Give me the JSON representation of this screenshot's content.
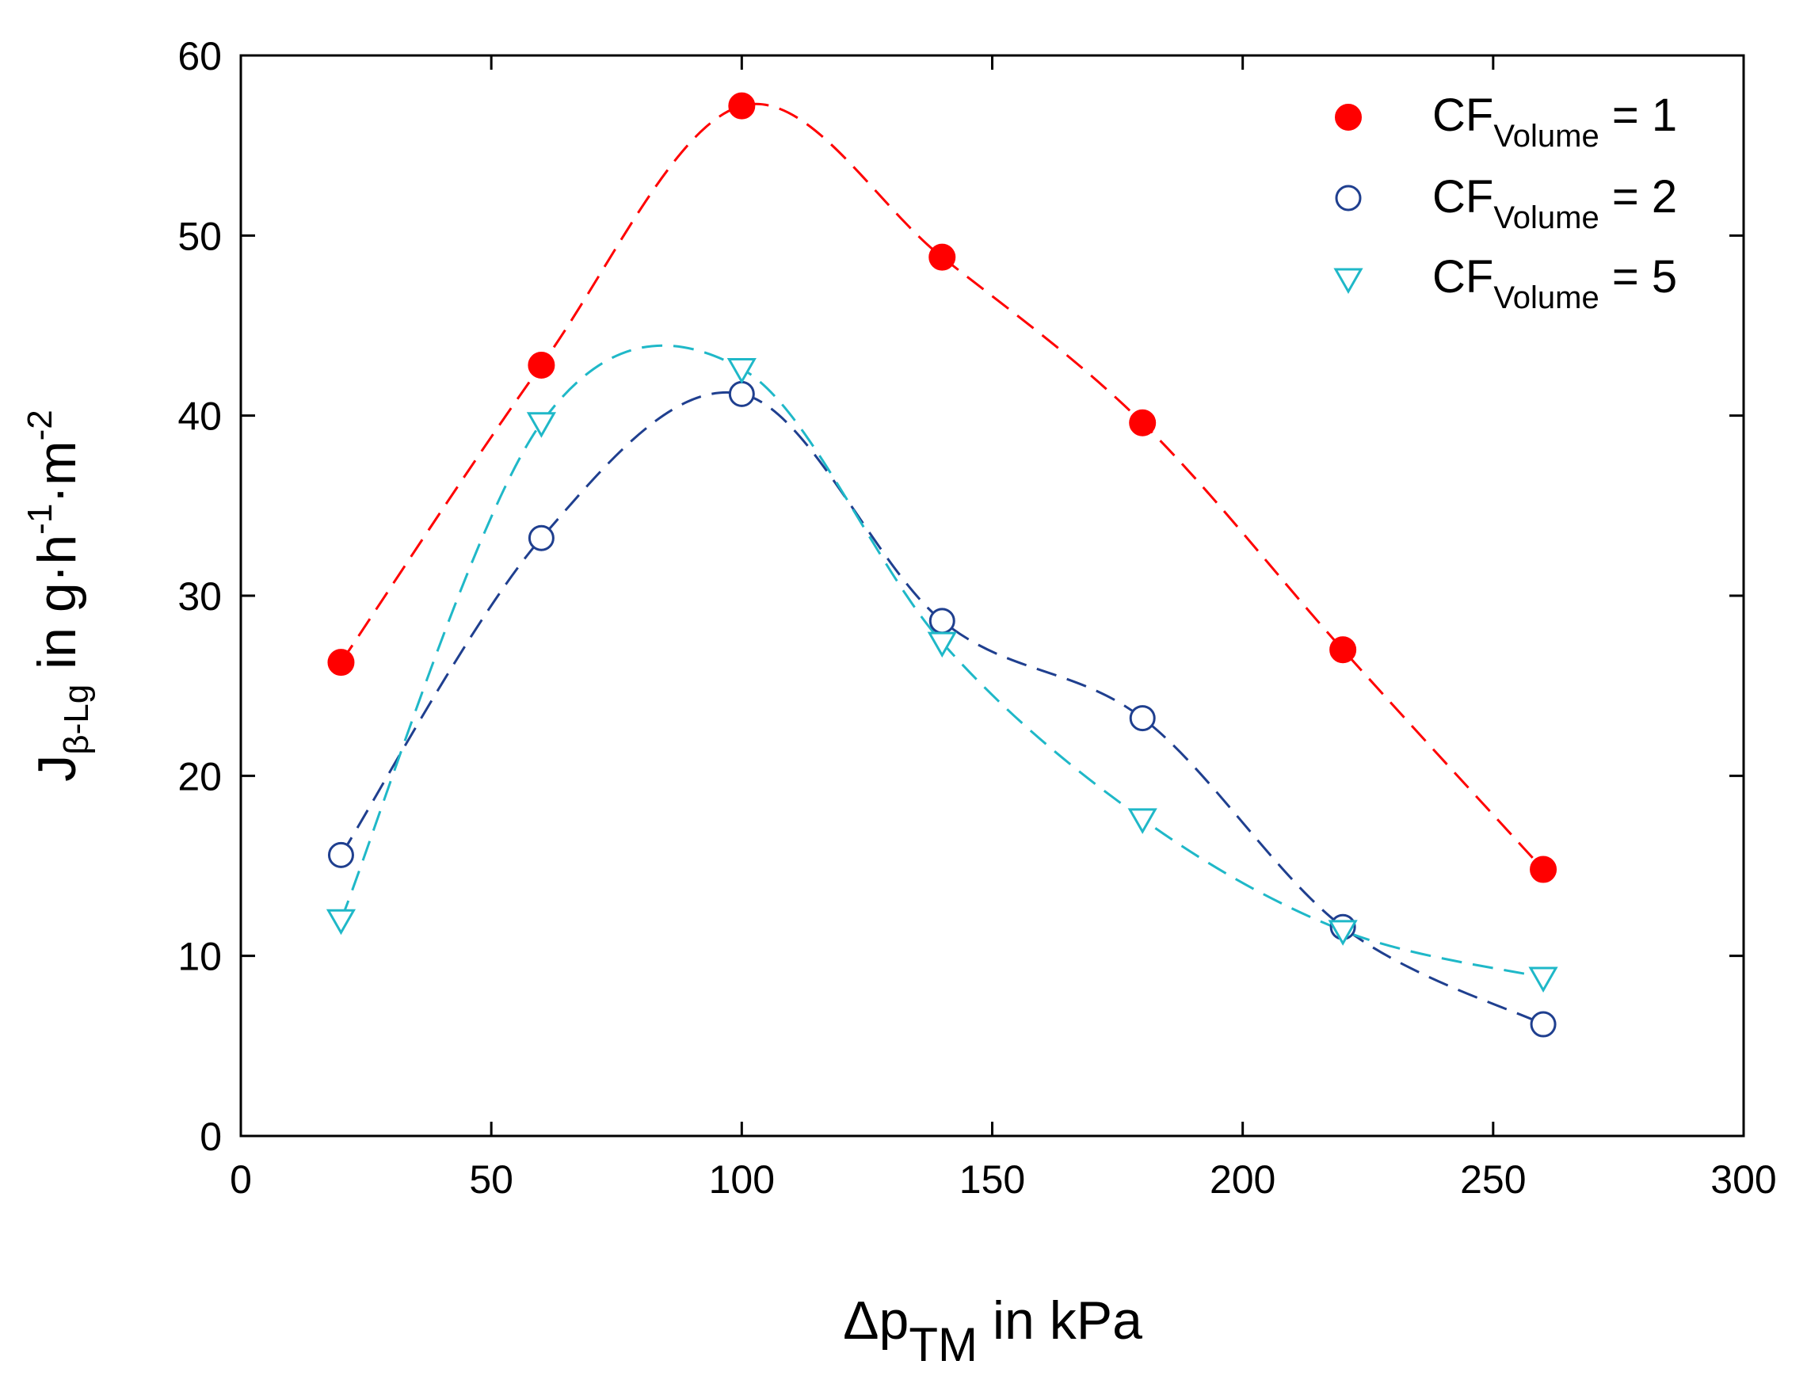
{
  "chart_data": {
    "type": "scatter",
    "title": "",
    "xlabel": {
      "main": "Δp",
      "sub": "TM",
      "rest": " in kPa"
    },
    "ylabel": {
      "main": "J",
      "sub": "β-Lg",
      "rest_1": " in g·h",
      "sup_1": "-1",
      "rest_2": "·m",
      "sup_2": "-2"
    },
    "xlim": [
      0,
      300
    ],
    "ylim": [
      0,
      60
    ],
    "xticks": [
      0,
      50,
      100,
      150,
      200,
      250,
      300
    ],
    "yticks": [
      0,
      10,
      20,
      30,
      40,
      50,
      60
    ],
    "grid": false,
    "legend_position": "top-right",
    "series": [
      {
        "name": "CF_Volume = 1",
        "legend": {
          "main": "CF",
          "sub": "Volume",
          "rest": " = 1"
        },
        "marker": "filled-circle",
        "color": "#ff0000",
        "line_style": "dashed",
        "x": [
          20,
          60,
          100,
          140,
          180,
          220,
          260
        ],
        "y": [
          26.3,
          42.8,
          57.2,
          48.8,
          39.6,
          27.0,
          14.8
        ]
      },
      {
        "name": "CF_Volume = 2",
        "legend": {
          "main": "CF",
          "sub": "Volume",
          "rest": " = 2"
        },
        "marker": "open-circle",
        "color": "#1f3f8f",
        "line_style": "dashed",
        "x": [
          20,
          60,
          100,
          140,
          180,
          220,
          260
        ],
        "y": [
          15.6,
          33.2,
          41.2,
          28.6,
          23.2,
          11.6,
          6.2
        ]
      },
      {
        "name": "CF_Volume = 5",
        "legend": {
          "main": "CF",
          "sub": "Volume",
          "rest": " = 5"
        },
        "marker": "open-triangle-down",
        "color": "#1fb8c8",
        "line_style": "dashed",
        "x": [
          20,
          60,
          100,
          140,
          180,
          220,
          260
        ],
        "y": [
          12.0,
          39.6,
          42.6,
          27.4,
          17.6,
          11.4,
          8.8
        ]
      }
    ]
  }
}
